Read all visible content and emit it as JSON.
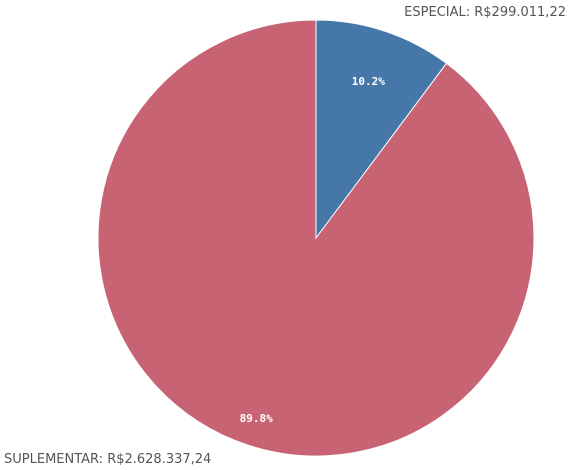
{
  "chart_data": {
    "type": "pie",
    "title": "",
    "slices": [
      {
        "name": "ESPECIAL",
        "value": 299011.22,
        "percent": 10.2,
        "percent_label": "10.2%",
        "outer_label": "ESPECIAL: R$299.011,22",
        "color": "#4577a8"
      },
      {
        "name": "SUPLEMENTAR",
        "value": 2628337.24,
        "percent": 89.8,
        "percent_label": "89.8%",
        "outer_label": "SUPLEMENTAR: R$2.628.337,24",
        "color": "#c86373"
      }
    ],
    "start_angle_deg": 0,
    "direction": "clockwise",
    "legend_position": "outside-labels"
  }
}
